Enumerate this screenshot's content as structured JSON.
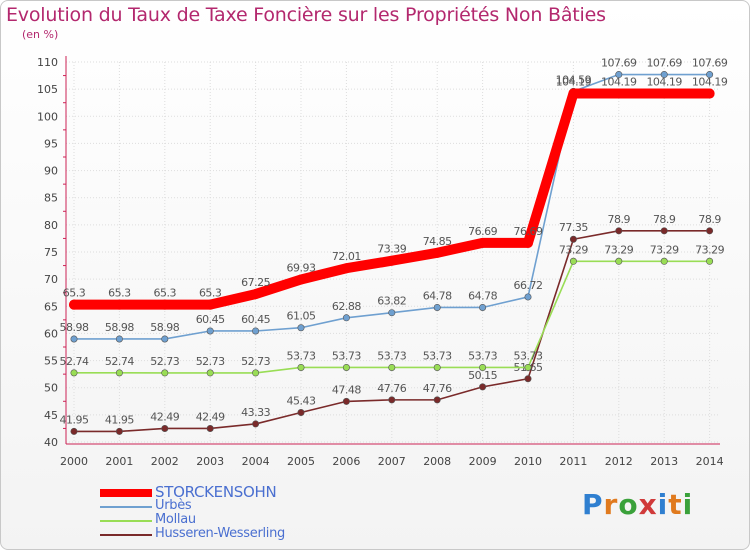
{
  "title": "Evolution du Taux de Taxe Foncière sur les Propriétés Non Bâties",
  "unit_label": "(en %)",
  "logo": {
    "letters": [
      "P",
      "r",
      "o",
      "x",
      "i",
      "t",
      "i"
    ],
    "colors": [
      "#2f7fd0",
      "#e07a1e",
      "#3aa13a",
      "#d03a3a",
      "#2f7fd0",
      "#e07a1e",
      "#3aa13a"
    ]
  },
  "chart_data": {
    "type": "line",
    "title": "Evolution du Taux de Taxe Foncière sur les Propriétés Non Bâties",
    "ylabel": "(en %)",
    "xlabel": "",
    "x": [
      "2000",
      "2001",
      "2002",
      "2003",
      "2004",
      "2005",
      "2006",
      "2007",
      "2008",
      "2009",
      "2010",
      "2011",
      "2012",
      "2013",
      "2014"
    ],
    "ylim": [
      40,
      110
    ],
    "yticks": [
      "40",
      "45",
      "50",
      "55",
      "60",
      "65",
      "70",
      "75",
      "80",
      "85",
      "90",
      "95",
      "100",
      "105",
      "110"
    ],
    "grid": true,
    "legend_position": "bottom-left",
    "series": [
      {
        "name": "STORCKENSOHN",
        "color": "#ff0000",
        "values": [
          65.3,
          65.3,
          65.3,
          65.3,
          67.25,
          69.93,
          72.01,
          73.39,
          74.85,
          76.69,
          76.69,
          104.19,
          104.19,
          104.19,
          104.19
        ],
        "labels": [
          "65.3",
          "65.3",
          "65.3",
          "65.3",
          "67.25",
          "69.93",
          "72.01",
          "73.39",
          "74.85",
          "76.69",
          "76.69",
          "104.19",
          "104.19",
          "104.19",
          "104.19"
        ]
      },
      {
        "name": "Urbès",
        "color": "#6fa0d0",
        "values": [
          58.98,
          58.98,
          58.98,
          60.45,
          60.45,
          61.05,
          62.88,
          63.82,
          64.78,
          64.78,
          66.72,
          104.59,
          107.69,
          107.69,
          107.69
        ],
        "labels": [
          "58.98",
          "58.98",
          "58.98",
          "60.45",
          "60.45",
          "61.05",
          "62.88",
          "63.82",
          "64.78",
          "64.78",
          "66.72",
          "104.59",
          "107.69",
          "107.69",
          "107.69"
        ]
      },
      {
        "name": "Mollau",
        "color": "#99dd55",
        "values": [
          52.74,
          52.74,
          52.73,
          52.73,
          52.73,
          53.73,
          53.73,
          53.73,
          53.73,
          53.73,
          53.73,
          73.29,
          73.29,
          73.29,
          73.29
        ],
        "labels": [
          "52.74",
          "52.74",
          "52.73",
          "52.73",
          "52.73",
          "53.73",
          "53.73",
          "53.73",
          "53.73",
          "53.73",
          "53.73",
          "73.29",
          "73.29",
          "73.29",
          "73.29"
        ]
      },
      {
        "name": "Husseren-Wesserling",
        "color": "#7a2a2a",
        "values": [
          41.95,
          41.95,
          42.49,
          42.49,
          43.33,
          45.43,
          47.48,
          47.76,
          47.76,
          50.15,
          51.65,
          77.35,
          78.9,
          78.9,
          78.9
        ],
        "labels": [
          "41.95",
          "41.95",
          "42.49",
          "42.49",
          "43.33",
          "45.43",
          "47.48",
          "47.76",
          "47.76",
          "50.15",
          "51.65",
          "77.35",
          "78.9",
          "78.9",
          "78.9"
        ]
      }
    ]
  }
}
